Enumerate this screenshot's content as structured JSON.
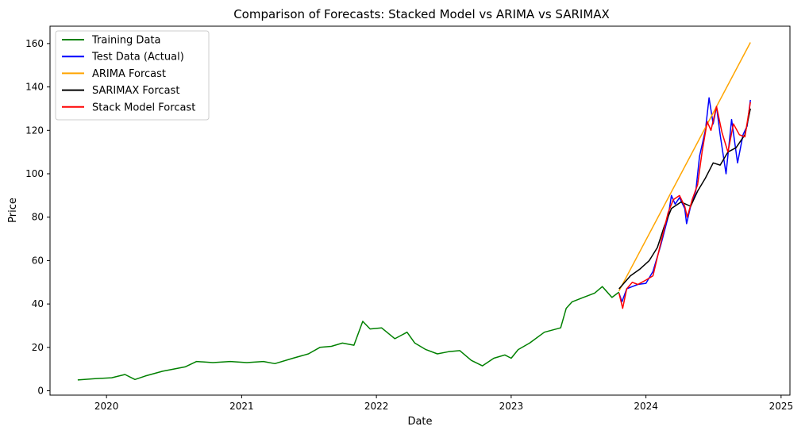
{
  "chart_data": {
    "type": "line",
    "title": "Comparison of Forecasts: Stacked Model vs ARIMA vs SARIMAX",
    "xlabel": "Date",
    "ylabel": "Price",
    "x_type": "date",
    "xlim": [
      "2019-08-01",
      "2025-01-25"
    ],
    "ylim": [
      -2,
      168
    ],
    "xticks": [
      {
        "label": "2020",
        "date": "2020-01-01"
      },
      {
        "label": "2021",
        "date": "2021-01-01"
      },
      {
        "label": "2022",
        "date": "2022-01-01"
      },
      {
        "label": "2023",
        "date": "2023-01-01"
      },
      {
        "label": "2024",
        "date": "2024-01-01"
      },
      {
        "label": "2025",
        "date": "2025-01-01"
      }
    ],
    "yticks": [
      0,
      20,
      40,
      60,
      80,
      100,
      120,
      140,
      160
    ],
    "grid": false,
    "legend_position": "upper-left",
    "series": [
      {
        "name": "Training Data",
        "color": "#008000",
        "points": [
          [
            "2019-10-15",
            5.0
          ],
          [
            "2019-12-01",
            5.6
          ],
          [
            "2020-01-15",
            6.0
          ],
          [
            "2020-02-20",
            7.5
          ],
          [
            "2020-03-18",
            5.2
          ],
          [
            "2020-04-15",
            6.8
          ],
          [
            "2020-06-01",
            9.0
          ],
          [
            "2020-08-01",
            11.0
          ],
          [
            "2020-09-01",
            13.5
          ],
          [
            "2020-10-15",
            13.0
          ],
          [
            "2020-12-01",
            13.5
          ],
          [
            "2021-01-15",
            13.0
          ],
          [
            "2021-03-01",
            13.5
          ],
          [
            "2021-04-01",
            12.5
          ],
          [
            "2021-05-20",
            15.0
          ],
          [
            "2021-07-01",
            17.0
          ],
          [
            "2021-08-01",
            20.0
          ],
          [
            "2021-09-01",
            20.5
          ],
          [
            "2021-10-01",
            22.0
          ],
          [
            "2021-11-01",
            21.0
          ],
          [
            "2021-11-25",
            32.0
          ],
          [
            "2021-12-15",
            28.5
          ],
          [
            "2022-01-15",
            29.0
          ],
          [
            "2022-02-20",
            24.0
          ],
          [
            "2022-03-25",
            27.0
          ],
          [
            "2022-04-15",
            22.0
          ],
          [
            "2022-05-15",
            19.0
          ],
          [
            "2022-06-15",
            17.0
          ],
          [
            "2022-07-15",
            18.0
          ],
          [
            "2022-08-15",
            18.5
          ],
          [
            "2022-09-15",
            14.0
          ],
          [
            "2022-10-15",
            11.5
          ],
          [
            "2022-11-15",
            15.0
          ],
          [
            "2022-12-15",
            16.5
          ],
          [
            "2023-01-01",
            15.0
          ],
          [
            "2023-01-20",
            19.0
          ],
          [
            "2023-02-20",
            22.0
          ],
          [
            "2023-04-01",
            27.0
          ],
          [
            "2023-05-15",
            29.0
          ],
          [
            "2023-05-30",
            38.0
          ],
          [
            "2023-06-15",
            41.0
          ],
          [
            "2023-07-15",
            43.0
          ],
          [
            "2023-08-15",
            45.0
          ],
          [
            "2023-09-05",
            48.0
          ],
          [
            "2023-10-01",
            43.0
          ],
          [
            "2023-10-20",
            45.5
          ]
        ]
      },
      {
        "name": "Test Data (Actual)",
        "color": "#0000ff",
        "points": [
          [
            "2023-10-20",
            45.0
          ],
          [
            "2023-10-28",
            41.0
          ],
          [
            "2023-11-10",
            47.0
          ],
          [
            "2023-11-25",
            48.0
          ],
          [
            "2023-12-10",
            49.0
          ],
          [
            "2024-01-01",
            49.5
          ],
          [
            "2024-01-20",
            55.0
          ],
          [
            "2024-02-10",
            67.0
          ],
          [
            "2024-03-01",
            80.0
          ],
          [
            "2024-03-10",
            90.0
          ],
          [
            "2024-03-20",
            86.0
          ],
          [
            "2024-04-01",
            89.0
          ],
          [
            "2024-04-15",
            84.0
          ],
          [
            "2024-04-20",
            77.0
          ],
          [
            "2024-05-01",
            85.0
          ],
          [
            "2024-05-15",
            92.0
          ],
          [
            "2024-05-25",
            108.0
          ],
          [
            "2024-06-10",
            120.0
          ],
          [
            "2024-06-20",
            135.0
          ],
          [
            "2024-07-01",
            123.0
          ],
          [
            "2024-07-10",
            131.0
          ],
          [
            "2024-07-20",
            118.0
          ],
          [
            "2024-08-05",
            100.0
          ],
          [
            "2024-08-20",
            125.0
          ],
          [
            "2024-09-05",
            105.0
          ],
          [
            "2024-09-20",
            118.0
          ],
          [
            "2024-10-01",
            122.0
          ],
          [
            "2024-10-10",
            134.0
          ]
        ]
      },
      {
        "name": "ARIMA Forcast",
        "color": "#ffa500",
        "points": [
          [
            "2023-10-20",
            46.0
          ],
          [
            "2024-10-10",
            160.5
          ]
        ]
      },
      {
        "name": "SARIMAX Forcast",
        "color": "#000000",
        "points": [
          [
            "2023-10-20",
            47.0
          ],
          [
            "2023-11-20",
            53.0
          ],
          [
            "2023-12-15",
            56.0
          ],
          [
            "2024-01-10",
            60.0
          ],
          [
            "2024-02-01",
            66.0
          ],
          [
            "2024-02-20",
            76.0
          ],
          [
            "2024-03-10",
            84.0
          ],
          [
            "2024-04-05",
            87.0
          ],
          [
            "2024-05-01",
            85.0
          ],
          [
            "2024-05-20",
            92.0
          ],
          [
            "2024-06-10",
            98.0
          ],
          [
            "2024-07-01",
            105.0
          ],
          [
            "2024-07-20",
            104.0
          ],
          [
            "2024-08-10",
            110.0
          ],
          [
            "2024-09-01",
            112.0
          ],
          [
            "2024-09-25",
            118.0
          ],
          [
            "2024-10-10",
            130.0
          ]
        ]
      },
      {
        "name": "Stack Model Forcast",
        "color": "#ff0000",
        "points": [
          [
            "2023-10-20",
            45.0
          ],
          [
            "2023-10-30",
            38.0
          ],
          [
            "2023-11-10",
            47.0
          ],
          [
            "2023-11-25",
            50.0
          ],
          [
            "2023-12-10",
            49.0
          ],
          [
            "2024-01-01",
            51.0
          ],
          [
            "2024-01-20",
            53.0
          ],
          [
            "2024-02-10",
            68.0
          ],
          [
            "2024-03-01",
            82.0
          ],
          [
            "2024-03-15",
            88.0
          ],
          [
            "2024-04-01",
            90.0
          ],
          [
            "2024-04-15",
            85.0
          ],
          [
            "2024-04-22",
            80.0
          ],
          [
            "2024-05-05",
            88.0
          ],
          [
            "2024-05-20",
            95.0
          ],
          [
            "2024-06-01",
            110.0
          ],
          [
            "2024-06-15",
            124.0
          ],
          [
            "2024-06-25",
            120.0
          ],
          [
            "2024-07-10",
            131.0
          ],
          [
            "2024-07-25",
            119.0
          ],
          [
            "2024-08-10",
            110.0
          ],
          [
            "2024-08-25",
            123.0
          ],
          [
            "2024-09-10",
            118.0
          ],
          [
            "2024-09-25",
            117.0
          ],
          [
            "2024-10-10",
            133.0
          ]
        ]
      }
    ]
  }
}
